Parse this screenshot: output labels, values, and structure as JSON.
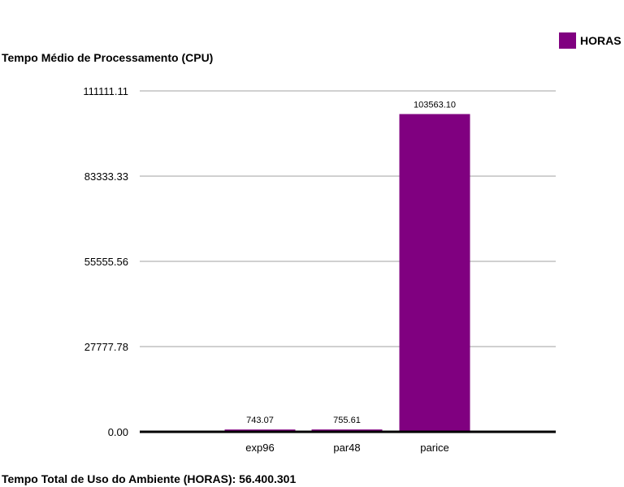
{
  "colors": {
    "bar": "#800080",
    "grid": "#a0a0a0",
    "axis": "#000000"
  },
  "legend": {
    "label": "HORAS"
  },
  "footer": {
    "text": "Tempo Total de Uso do Ambiente (HORAS): 56.400.301"
  },
  "chart_data": {
    "type": "bar",
    "title": "Tempo Médio de Processamento (CPU)",
    "xlabel": "",
    "ylabel": "",
    "categories": [
      "exp96",
      "par48",
      "parice"
    ],
    "series": [
      {
        "name": "HORAS",
        "values": [
          743.07,
          755.61,
          103563.1
        ]
      }
    ],
    "value_labels": [
      "743.07",
      "755.61",
      "103563.10"
    ],
    "ylim": [
      0,
      111111.11
    ],
    "yticks": [
      0,
      27777.78,
      55555.56,
      83333.33,
      111111.11
    ],
    "ytick_labels": [
      "0.00",
      "27777.78",
      "55555.56",
      "83333.33",
      "111111.11"
    ],
    "grid": true,
    "legend_position": "top-right"
  }
}
